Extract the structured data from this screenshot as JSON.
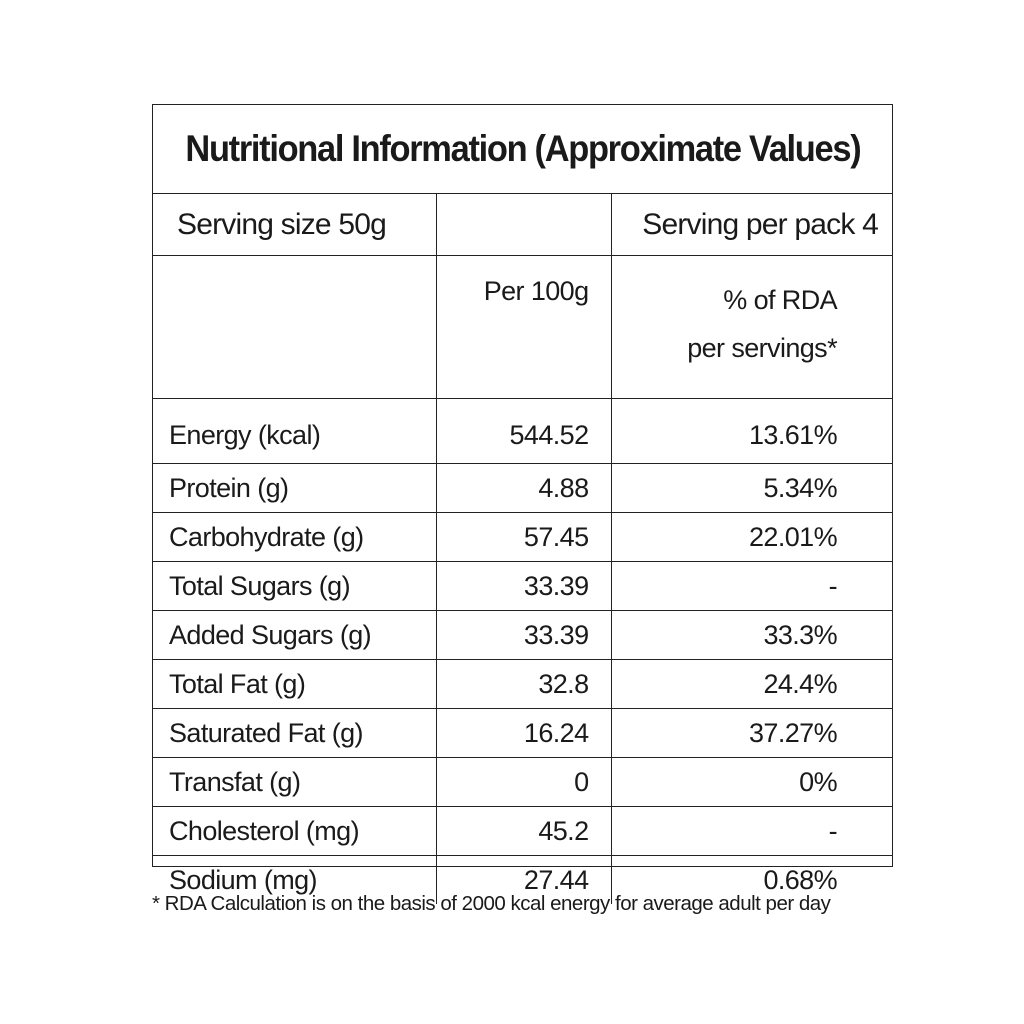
{
  "title": "Nutritional Information (Approximate Values)",
  "serving_size": "Serving size 50g",
  "serving_per_pack": "Serving per pack  4",
  "columns": {
    "per_100g": "Per 100g",
    "rda_line1": "% of RDA",
    "rda_line2": "per servings*"
  },
  "rows": [
    {
      "nutrient": "Energy (kcal)",
      "per_100g": "544.52",
      "rda": "13.61%"
    },
    {
      "nutrient": "Protein (g)",
      "per_100g": "4.88",
      "rda": "5.34%"
    },
    {
      "nutrient": "Carbohydrate (g)",
      "per_100g": "57.45",
      "rda": "22.01%"
    },
    {
      "nutrient": "Total Sugars (g)",
      "per_100g": "33.39",
      "rda": "-"
    },
    {
      "nutrient": "Added Sugars (g)",
      "per_100g": "33.39",
      "rda": "33.3%"
    },
    {
      "nutrient": "Total Fat (g)",
      "per_100g": "32.8",
      "rda": "24.4%"
    },
    {
      "nutrient": "Saturated Fat (g)",
      "per_100g": "16.24",
      "rda": "37.27%"
    },
    {
      "nutrient": "Transfat (g)",
      "per_100g": "0",
      "rda": "0%"
    },
    {
      "nutrient": "Cholesterol (mg)",
      "per_100g": "45.2",
      "rda": "-"
    },
    {
      "nutrient": "Sodium (mg)",
      "per_100g": "27.44",
      "rda": "0.68%"
    }
  ],
  "footnote": "* RDA Calculation is on the basis of 2000 kcal energy for average adult per day"
}
